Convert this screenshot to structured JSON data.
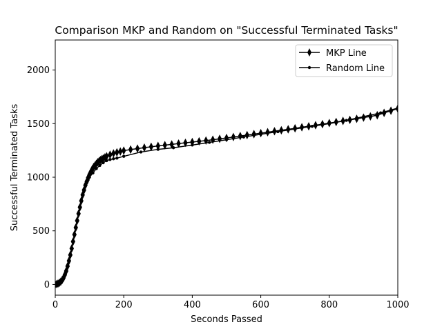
{
  "chart_data": {
    "type": "line",
    "title": "Comparison MKP and Random on \"Successful Terminated Tasks\"",
    "xlabel": "Seconds Passed",
    "ylabel": "Successful Terminated Tasks",
    "xlim": [
      0,
      1000
    ],
    "ylim": [
      -100,
      2280
    ],
    "xticks": [
      0,
      200,
      400,
      600,
      800,
      1000
    ],
    "yticks": [
      0,
      500,
      1000,
      1500,
      2000
    ],
    "grid": false,
    "legend_position": "top-right",
    "series": [
      {
        "name": "MKP Line",
        "marker": "thin_diamond",
        "color": "#000000",
        "x": [
          0,
          4,
          8,
          12,
          16,
          20,
          24,
          28,
          32,
          36,
          40,
          44,
          48,
          52,
          56,
          60,
          64,
          68,
          72,
          76,
          80,
          84,
          88,
          92,
          96,
          100,
          104,
          108,
          112,
          116,
          120,
          124,
          128,
          132,
          136,
          140,
          145,
          150,
          160,
          170,
          180,
          190,
          200,
          220,
          240,
          260,
          280,
          300,
          320,
          340,
          360,
          380,
          400,
          420,
          440,
          460,
          480,
          500,
          520,
          540,
          560,
          580,
          600,
          620,
          640,
          660,
          680,
          700,
          720,
          740,
          760,
          780,
          800,
          820,
          840,
          860,
          880,
          900,
          920,
          940,
          960,
          980,
          1000
        ],
        "y": [
          0,
          3,
          8,
          15,
          25,
          40,
          60,
          90,
          125,
          170,
          220,
          275,
          335,
          400,
          465,
          530,
          595,
          660,
          720,
          780,
          835,
          880,
          925,
          960,
          995,
          1025,
          1050,
          1075,
          1095,
          1110,
          1125,
          1140,
          1150,
          1160,
          1168,
          1175,
          1185,
          1195,
          1210,
          1222,
          1232,
          1240,
          1248,
          1258,
          1267,
          1276,
          1284,
          1292,
          1299,
          1306,
          1314,
          1321,
          1328,
          1335,
          1342,
          1350,
          1358,
          1366,
          1375,
          1384,
          1393,
          1402,
          1411,
          1420,
          1429,
          1438,
          1447,
          1456,
          1466,
          1475,
          1485,
          1495,
          1505,
          1515,
          1525,
          1535,
          1545,
          1556,
          1567,
          1578,
          1600,
          1620,
          1640
        ]
      },
      {
        "name": "Random Line",
        "marker": "point",
        "color": "#000000",
        "x": [
          0,
          4,
          8,
          12,
          16,
          20,
          24,
          28,
          32,
          36,
          40,
          44,
          48,
          52,
          56,
          60,
          64,
          68,
          72,
          76,
          80,
          84,
          88,
          92,
          96,
          100,
          110,
          120,
          130,
          140,
          150,
          160,
          170,
          180,
          200,
          250,
          300,
          345,
          400,
          450,
          500,
          550,
          600,
          650,
          700,
          750,
          800,
          850,
          900,
          950,
          1000
        ],
        "y": [
          0,
          3,
          8,
          15,
          25,
          40,
          60,
          90,
          125,
          170,
          220,
          275,
          335,
          400,
          465,
          530,
          595,
          660,
          720,
          780,
          835,
          880,
          920,
          950,
          975,
          1000,
          1040,
          1080,
          1110,
          1135,
          1155,
          1165,
          1172,
          1178,
          1195,
          1235,
          1260,
          1275,
          1300,
          1325,
          1350,
          1375,
          1400,
          1425,
          1450,
          1475,
          1500,
          1530,
          1565,
          1600,
          1645
        ]
      }
    ]
  }
}
